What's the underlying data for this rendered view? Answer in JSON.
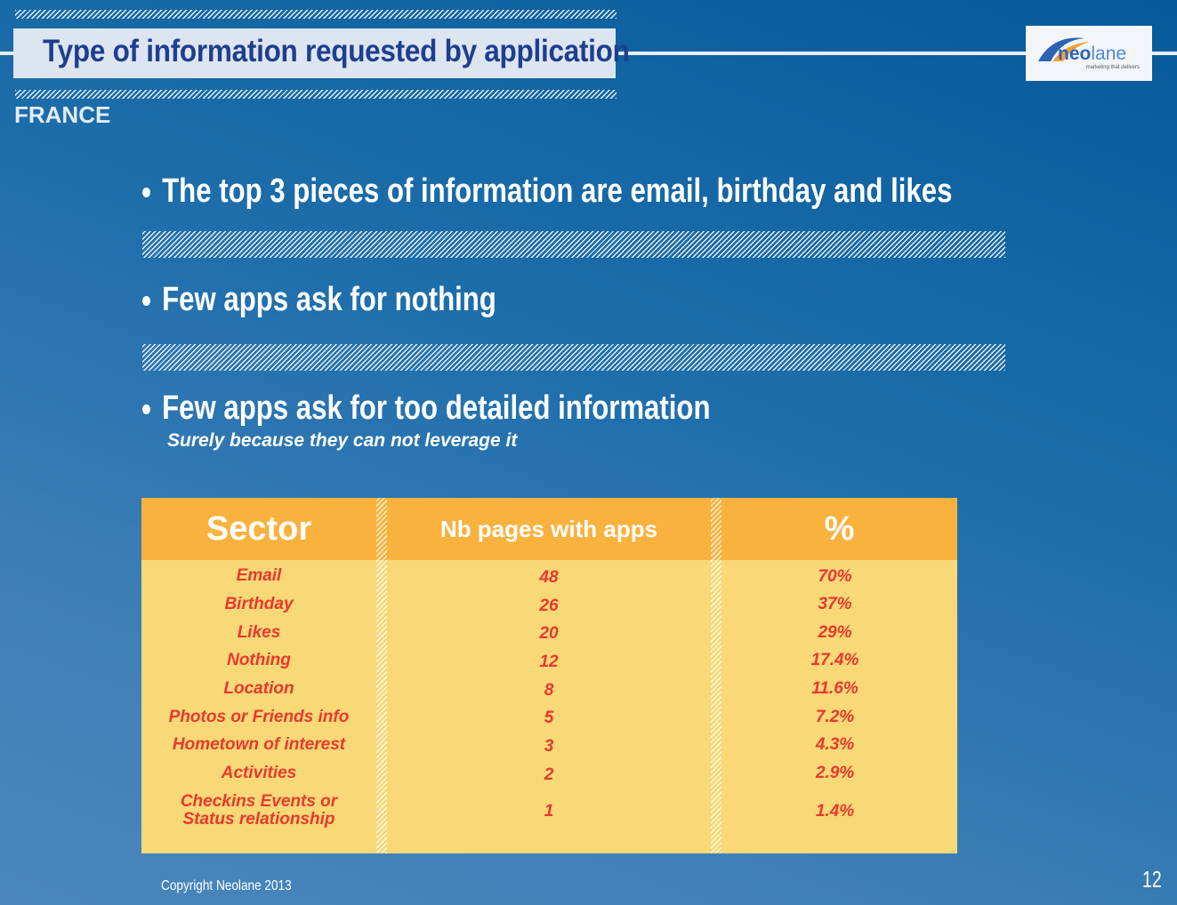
{
  "header": {
    "title": "Type of information requested by application",
    "country": "FRANCE"
  },
  "logo": {
    "name": "neolane",
    "brand_part1": "neo",
    "brand_part2": "lane",
    "tagline": "marketing that delivers"
  },
  "bullets": [
    "The top 3 pieces of information are email, birthday and likes",
    "Few apps ask for nothing",
    "Few apps ask for too detailed information"
  ],
  "subnote": "Surely because they can not leverage it",
  "table": {
    "headers": [
      "Sector",
      "Nb pages with apps",
      "%"
    ],
    "rows": [
      {
        "sector": "Email",
        "count": "48",
        "pct": "70%"
      },
      {
        "sector": "Birthday",
        "count": "26",
        "pct": "37%"
      },
      {
        "sector": "Likes",
        "count": "20",
        "pct": "29%"
      },
      {
        "sector": "Nothing",
        "count": "12",
        "pct": "17.4%"
      },
      {
        "sector": "Location",
        "count": "8",
        "pct": "11.6%"
      },
      {
        "sector": "Photos or Friends info",
        "count": "5",
        "pct": "7.2%"
      },
      {
        "sector": "Hometown of interest",
        "count": "3",
        "pct": "4.3%"
      },
      {
        "sector": "Activities",
        "count": "2",
        "pct": "2.9%"
      },
      {
        "sector": "Checkins Events or",
        "sector_line2": "Status relationship",
        "count": "1",
        "pct": "1.4%"
      }
    ]
  },
  "footer": {
    "copyright": "Copyright Neolane 2013",
    "page": "12"
  },
  "colors": {
    "background": "#1f6fac",
    "table_header": "#f9b23e",
    "table_body": "#f8d877",
    "table_text": "#e8392e",
    "title_text": "#1e3f8f"
  }
}
